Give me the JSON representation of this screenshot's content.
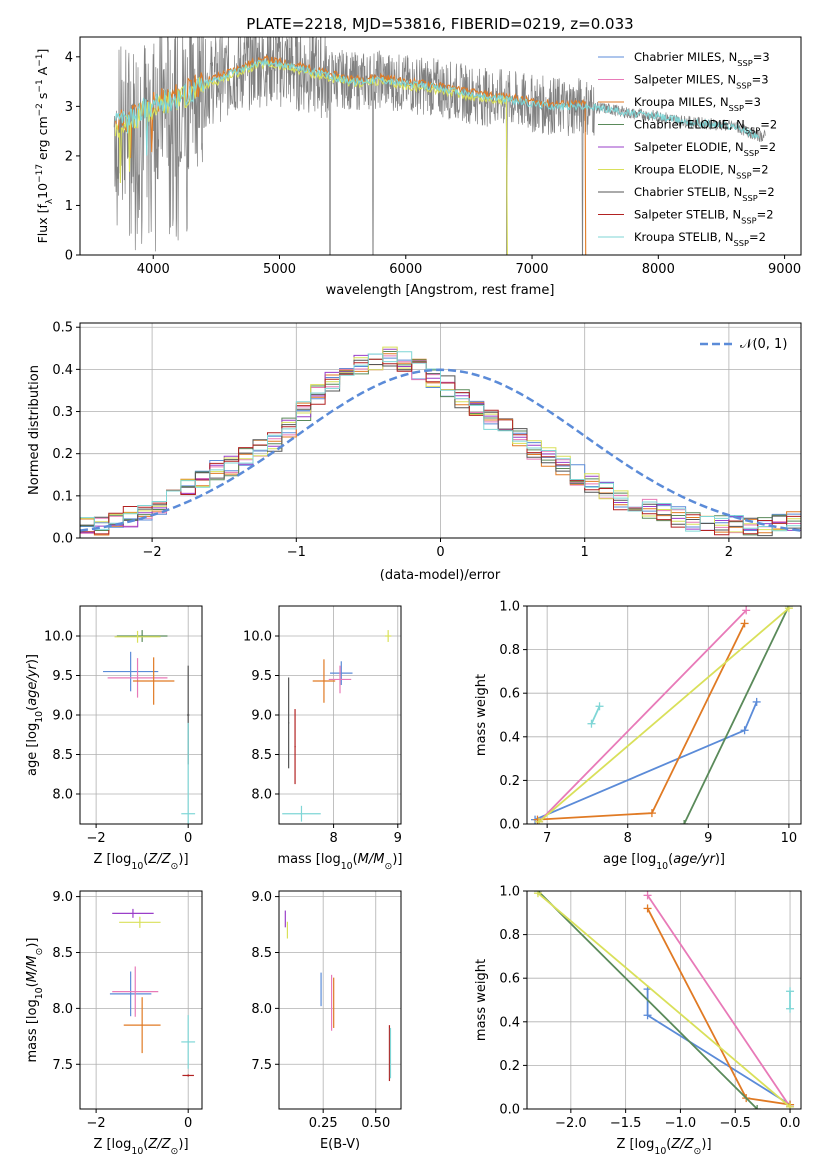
{
  "colors": {
    "chabrier_miles": "#5b8bd8",
    "salpeter_miles": "#e87ab8",
    "kroupa_miles": "#e07a24",
    "chabrier_elodie": "#5a8a5a",
    "salpeter_elodie": "#9a3fc9",
    "kroupa_elodie": "#d9e05a",
    "chabrier_stelib": "#555555",
    "salpeter_stelib": "#b22222",
    "kroupa_stelib": "#7fd6d6",
    "spectrum": "#808080"
  },
  "chart_data": [
    {
      "id": "spectrum",
      "type": "line",
      "title": "PLATE=2218, MJD=53816, FIBERID=0219, z=0.033",
      "xlabel": "wavelength [Angstrom, rest frame]",
      "ylabel": "Flux [f$_\\lambda$10$^{-17}$ erg cm$^{-2}$ s$^{-1}$ A$^{-1}$]",
      "xlim": [
        3420,
        9130
      ],
      "ylim": [
        0,
        4.4
      ],
      "xticks": [
        "4000",
        "5000",
        "6000",
        "7000",
        "8000",
        "9000"
      ],
      "yticks": [
        "0",
        "1",
        "2",
        "3",
        "4"
      ],
      "legend_position": "top-right",
      "legend": [
        {
          "main": "Chabrier MILES, N",
          "sub": "SSP",
          "tail": "=3"
        },
        {
          "main": "Salpeter MILES, N",
          "sub": "SSP",
          "tail": "=3"
        },
        {
          "main": "Kroupa MILES, N",
          "sub": "SSP",
          "tail": "=3"
        },
        {
          "main": "Chabrier ELODIE, N",
          "sub": "SSP",
          "tail": "=2"
        },
        {
          "main": "Salpeter ELODIE, N",
          "sub": "SSP",
          "tail": "=2"
        },
        {
          "main": "Kroupa ELODIE, N",
          "sub": "SSP",
          "tail": "=2"
        },
        {
          "main": "Chabrier STELIB, N",
          "sub": "SSP",
          "tail": "=2"
        },
        {
          "main": "Salpeter STELIB, N",
          "sub": "SSP",
          "tail": "=2"
        },
        {
          "main": "Kroupa STELIB, N",
          "sub": "SSP",
          "tail": "=2"
        }
      ],
      "continuum": [
        [
          3680,
          2.6
        ],
        [
          3800,
          2.7
        ],
        [
          3900,
          2.9
        ],
        [
          4000,
          3.0
        ],
        [
          4100,
          3.1
        ],
        [
          4200,
          3.2
        ],
        [
          4300,
          3.3
        ],
        [
          4400,
          3.45
        ],
        [
          4500,
          3.55
        ],
        [
          4600,
          3.65
        ],
        [
          4700,
          3.75
        ],
        [
          4800,
          3.85
        ],
        [
          4900,
          3.9
        ],
        [
          5000,
          3.85
        ],
        [
          5200,
          3.75
        ],
        [
          5400,
          3.6
        ],
        [
          5600,
          3.5
        ],
        [
          5800,
          3.55
        ],
        [
          6000,
          3.45
        ],
        [
          6200,
          3.4
        ],
        [
          6400,
          3.3
        ],
        [
          6600,
          3.2
        ],
        [
          6800,
          3.15
        ],
        [
          7000,
          3.05
        ],
        [
          7200,
          3.0
        ],
        [
          7400,
          3.0
        ],
        [
          7600,
          2.95
        ],
        [
          7800,
          2.85
        ],
        [
          8000,
          2.8
        ],
        [
          8200,
          2.7
        ],
        [
          8400,
          2.65
        ],
        [
          8600,
          2.6
        ],
        [
          8800,
          2.4
        ]
      ]
    },
    {
      "id": "residuals",
      "type": "line",
      "xlabel": "(data-model)/error",
      "ylabel": "Normed distribution",
      "xlim": [
        -2.5,
        2.5
      ],
      "ylim": [
        0,
        0.51
      ],
      "xticks": [
        "−2",
        "−1",
        "0",
        "1",
        "2"
      ],
      "yticks": [
        "0.0",
        "0.1",
        "0.2",
        "0.3",
        "0.4",
        "0.5"
      ],
      "grid": true,
      "legend_position": "top-right",
      "legend": [
        "𝒩(0, 1)"
      ],
      "bin_width": 0.1,
      "hist": [
        0.03,
        0.03,
        0.04,
        0.05,
        0.06,
        0.08,
        0.1,
        0.12,
        0.14,
        0.16,
        0.17,
        0.19,
        0.21,
        0.23,
        0.26,
        0.3,
        0.34,
        0.37,
        0.39,
        0.41,
        0.42,
        0.43,
        0.42,
        0.4,
        0.38,
        0.36,
        0.33,
        0.3,
        0.28,
        0.26,
        0.24,
        0.21,
        0.19,
        0.17,
        0.15,
        0.13,
        0.11,
        0.09,
        0.08,
        0.07,
        0.06,
        0.05,
        0.04,
        0.04,
        0.03,
        0.03,
        0.03,
        0.03,
        0.04,
        0.04
      ]
    },
    {
      "id": "age-vs-z",
      "type": "scatter",
      "xlabel": "Z [log$_{10}$(Z/Z$_\\odot$)]",
      "ylabel": "age  [log$_{10}$(age/yr)]",
      "xlim": [
        -2.35,
        0.3
      ],
      "ylim": [
        7.62,
        10.38
      ],
      "xticks": [
        "−2",
        "0"
      ],
      "yticks": [
        "8.0",
        "8.5",
        "9.0",
        "9.5",
        "10.0"
      ],
      "grid": true,
      "crosses": [
        {
          "series": "chabrier_miles",
          "x": -1.25,
          "y": 9.55,
          "dx": 1.2,
          "dy": 0.5
        },
        {
          "series": "salpeter_miles",
          "x": -1.1,
          "y": 9.47,
          "dx": 1.3,
          "dy": 0.5
        },
        {
          "series": "kroupa_miles",
          "x": -0.75,
          "y": 9.43,
          "dx": 0.9,
          "dy": 0.6
        },
        {
          "series": "chabrier_elodie",
          "x": -1.0,
          "y": 10.0,
          "dx": 1.1,
          "dy": 0.15
        },
        {
          "series": "kroupa_elodie",
          "x": -1.1,
          "y": 9.99,
          "dx": 1.0,
          "dy": 0.15
        },
        {
          "series": "chabrier_stelib",
          "x": 0.0,
          "y": 9.0,
          "dx": 0.05,
          "dy": 1.25
        },
        {
          "series": "kroupa_stelib",
          "x": 0.0,
          "y": 7.75,
          "dx": 0.3,
          "dy": 2.3
        }
      ]
    },
    {
      "id": "age-vs-mass",
      "type": "scatter",
      "xlabel": "mass [log$_{10}$(M/M$_\\odot$)]",
      "ylabel": "",
      "xlim": [
        7.15,
        9.05
      ],
      "ylim": [
        7.62,
        10.38
      ],
      "xticks": [
        "8",
        "9"
      ],
      "yticks": [
        "8.0",
        "8.5",
        "9.0",
        "9.5",
        "10.0"
      ],
      "grid": true,
      "crosses": [
        {
          "series": "chabrier_miles",
          "x": 8.12,
          "y": 9.53,
          "dx": 0.35,
          "dy": 0.3
        },
        {
          "series": "salpeter_miles",
          "x": 8.1,
          "y": 9.45,
          "dx": 0.35,
          "dy": 0.35
        },
        {
          "series": "kroupa_miles",
          "x": 7.85,
          "y": 9.43,
          "dx": 0.35,
          "dy": 0.55
        },
        {
          "series": "kroupa_elodie",
          "x": 8.85,
          "y": 10.0,
          "dx": 0.1,
          "dy": 0.15
        },
        {
          "series": "salpeter_stelib",
          "x": 7.4,
          "y": 8.6,
          "dx": 0.02,
          "dy": 0.95
        },
        {
          "series": "kroupa_stelib",
          "x": 7.5,
          "y": 7.75,
          "dx": 0.6,
          "dy": 0.2
        },
        {
          "series": "chabrier_stelib",
          "x": 7.3,
          "y": 8.9,
          "dx": 0.02,
          "dy": 1.15
        }
      ]
    },
    {
      "id": "weight-vs-age",
      "type": "line",
      "xlabel": "age  [log$_{10}$(age/yr)]",
      "ylabel": "mass weight",
      "xlim": [
        6.75,
        10.15
      ],
      "ylim": [
        0,
        1
      ],
      "xticks": [
        "7",
        "8",
        "9",
        "10"
      ],
      "yticks": [
        "0.0",
        "0.2",
        "0.4",
        "0.6",
        "0.8",
        "1.0"
      ],
      "grid": true,
      "series": [
        {
          "name": "chabrier_miles",
          "x": [
            6.85,
            9.45,
            9.6
          ],
          "y": [
            0.02,
            0.43,
            0.56
          ]
        },
        {
          "name": "salpeter_miles",
          "x": [
            6.9,
            9.47
          ],
          "y": [
            0.01,
            0.98
          ]
        },
        {
          "name": "kroupa_miles",
          "x": [
            6.88,
            8.3,
            9.45
          ],
          "y": [
            0.02,
            0.05,
            0.92
          ]
        },
        {
          "name": "chabrier_elodie",
          "x": [
            8.7,
            10.0
          ],
          "y": [
            0.0,
            1.0
          ]
        },
        {
          "name": "kroupa_elodie",
          "x": [
            6.9,
            10.0
          ],
          "y": [
            0.01,
            0.99
          ]
        },
        {
          "name": "kroupa_stelib",
          "x": [
            7.55,
            7.65
          ],
          "y": [
            0.46,
            0.54
          ]
        }
      ]
    },
    {
      "id": "mass-vs-z",
      "type": "scatter",
      "xlabel": "Z [log$_{10}$(Z/Z$_\\odot$)]",
      "ylabel": "mass [log$_{10}$(M/M$_\\odot$)]",
      "xlim": [
        -2.35,
        0.3
      ],
      "ylim": [
        7.1,
        9.05
      ],
      "xticks": [
        "−2",
        "0"
      ],
      "yticks": [
        "7.5",
        "8.0",
        "8.5",
        "9.0"
      ],
      "grid": true,
      "crosses": [
        {
          "series": "chabrier_miles",
          "x": -1.25,
          "y": 8.13,
          "dx": 0.9,
          "dy": 0.4
        },
        {
          "series": "salpeter_miles",
          "x": -1.15,
          "y": 8.15,
          "dx": 1.0,
          "dy": 0.45
        },
        {
          "series": "kroupa_miles",
          "x": -1.0,
          "y": 7.85,
          "dx": 0.8,
          "dy": 0.5
        },
        {
          "series": "salpeter_elodie",
          "x": -1.2,
          "y": 8.85,
          "dx": 0.9,
          "dy": 0.08
        },
        {
          "series": "kroupa_elodie",
          "x": -1.05,
          "y": 8.77,
          "dx": 0.9,
          "dy": 0.1
        },
        {
          "series": "salpeter_stelib",
          "x": 0.0,
          "y": 7.4,
          "dx": 0.25,
          "dy": 0.02
        },
        {
          "series": "kroupa_stelib",
          "x": 0.0,
          "y": 7.7,
          "dx": 0.3,
          "dy": 0.48
        }
      ]
    },
    {
      "id": "mass-vs-ebv",
      "type": "scatter",
      "xlabel": "E(B-V)",
      "ylabel": "",
      "xlim": [
        0.04,
        0.62
      ],
      "ylim": [
        7.1,
        9.05
      ],
      "xticks": [
        "0.25",
        "0.50"
      ],
      "yticks": [
        "7.5",
        "8.0",
        "8.5",
        "9.0"
      ],
      "grid": true,
      "crosses": [
        {
          "series": "chabrier_miles",
          "x": 0.24,
          "y": 8.17,
          "dx": 0.0,
          "dy": 0.3
        },
        {
          "series": "salpeter_miles",
          "x": 0.29,
          "y": 8.05,
          "dx": 0.0,
          "dy": 0.5
        },
        {
          "series": "kroupa_miles",
          "x": 0.3,
          "y": 8.05,
          "dx": 0.0,
          "dy": 0.45
        },
        {
          "series": "salpeter_elodie",
          "x": 0.07,
          "y": 8.8,
          "dx": 0.0,
          "dy": 0.15
        },
        {
          "series": "kroupa_elodie",
          "x": 0.08,
          "y": 8.7,
          "dx": 0.0,
          "dy": 0.15
        },
        {
          "series": "salpeter_stelib",
          "x": 0.565,
          "y": 7.6,
          "dx": 0.0,
          "dy": 0.5
        },
        {
          "series": "kroupa_stelib",
          "x": 0.57,
          "y": 7.6,
          "dx": 0.0,
          "dy": 0.45
        }
      ]
    },
    {
      "id": "weight-vs-z",
      "type": "line",
      "xlabel": "Z [log$_{10}$(Z/Z$_\\odot$)]",
      "ylabel": "mass weight",
      "xlim": [
        -2.4,
        0.1
      ],
      "ylim": [
        0,
        1
      ],
      "xticks": [
        "−2.0",
        "−1.5",
        "−1.0",
        "−0.5",
        "0.0"
      ],
      "yticks": [
        "0.0",
        "0.2",
        "0.4",
        "0.6",
        "0.8",
        "1.0"
      ],
      "grid": true,
      "series": [
        {
          "name": "chabrier_miles",
          "x": [
            -1.3,
            -1.3,
            0.0
          ],
          "y": [
            0.55,
            0.43,
            0.02
          ]
        },
        {
          "name": "salpeter_miles",
          "x": [
            -1.3,
            0.0
          ],
          "y": [
            0.98,
            0.01
          ]
        },
        {
          "name": "kroupa_miles",
          "x": [
            -1.3,
            -0.4,
            0.0
          ],
          "y": [
            0.92,
            0.05,
            0.02
          ]
        },
        {
          "name": "chabrier_elodie",
          "x": [
            -2.3,
            -0.3
          ],
          "y": [
            1.0,
            0.0
          ]
        },
        {
          "name": "kroupa_elodie",
          "x": [
            -2.3,
            0.0
          ],
          "y": [
            0.99,
            0.01
          ]
        },
        {
          "name": "kroupa_stelib",
          "x": [
            0.0,
            0.0
          ],
          "y": [
            0.46,
            0.54
          ]
        }
      ]
    }
  ]
}
